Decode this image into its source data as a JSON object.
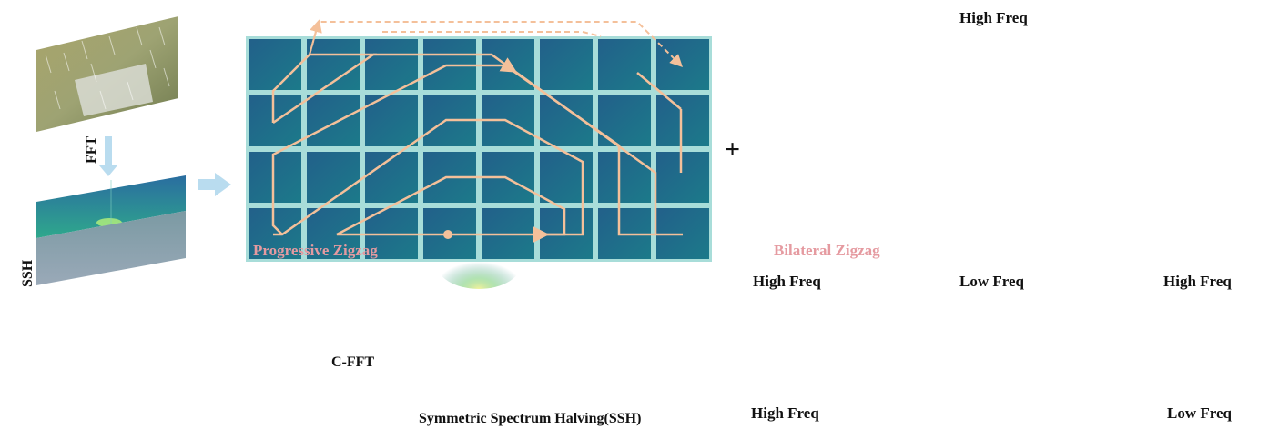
{
  "top": {
    "fft_label": "FFT",
    "ssh_label": "SSH",
    "plus_sign": "+",
    "progressive": {
      "title": "Progressive Zigzag"
    },
    "bilateral": {
      "title": "Bilateral Zigzag",
      "high_freq_top": "High Freq",
      "high_freq_left": "High Freq",
      "low_freq_center": "Low Freq",
      "high_freq_right": "High Freq"
    }
  },
  "bottom": {
    "cfft_label": "C-FFT",
    "ssh_caption": "Symmetric Spectrum Halving(SSH)",
    "high_freq": "High Freq",
    "low_freq": "Low Freq",
    "token_colors": [
      "#d7e1f4",
      "#a8bbe3",
      "#8ba4da",
      "#6a8bd2",
      "#5679cb",
      "#5276c8",
      "#2e4f95",
      "#233f7a"
    ]
  },
  "colors": {
    "path": "#f4c09a",
    "arrow_blue": "#3d63b8",
    "pale_arrow": "#b9dcef",
    "grid_line": "#a8ddd9",
    "tile": "#1f6c8c",
    "title_pink": "#e59aa0"
  }
}
